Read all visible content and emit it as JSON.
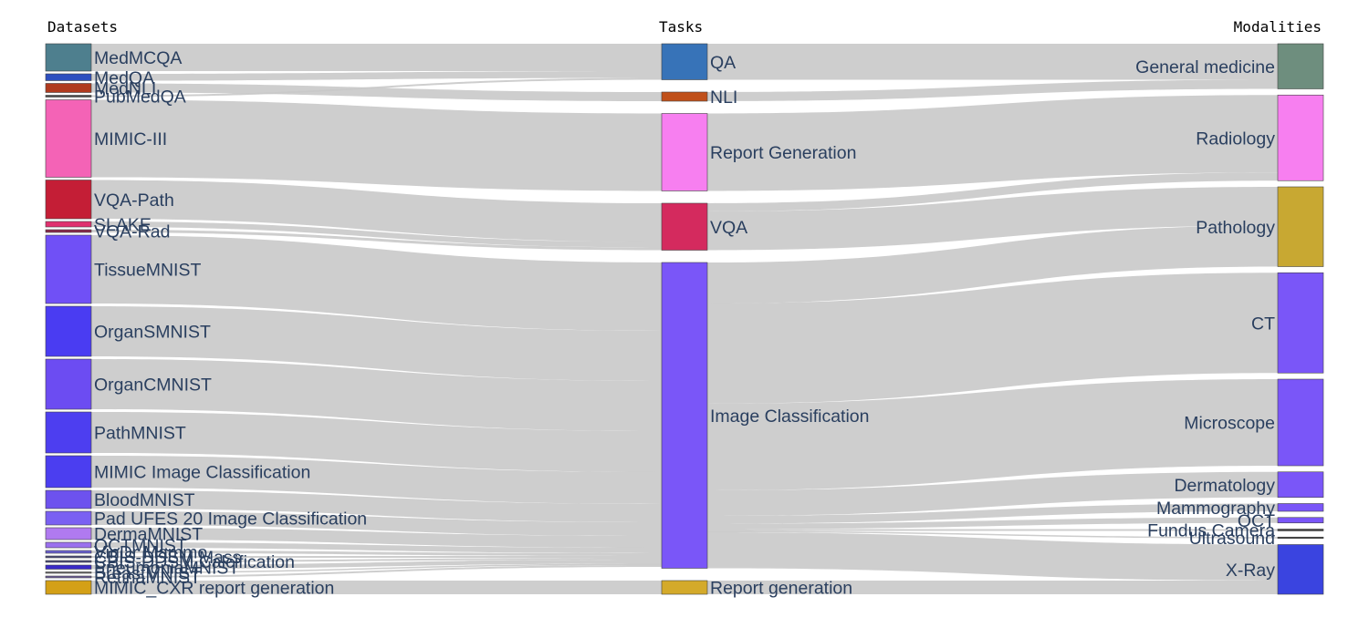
{
  "headers": {
    "datasets": "Datasets",
    "tasks": "Tasks",
    "modalities": "Modalities"
  },
  "chart_data": {
    "type": "sankey",
    "nodes": [
      {
        "id": "MedMCQA",
        "label": "MedMCQA",
        "column": 0,
        "color": "#4e7f8e"
      },
      {
        "id": "MedQA",
        "label": "MedQA",
        "column": 0,
        "color": "#2d4fbf"
      },
      {
        "id": "MedNLI",
        "label": "MedNLI",
        "column": 0,
        "color": "#b03a1e"
      },
      {
        "id": "PubMedQA",
        "label": "PubMedQA",
        "column": 0,
        "color": "#4a4a4a"
      },
      {
        "id": "MIMIC-III",
        "label": "MIMIC-III",
        "column": 0,
        "color": "#f463b6"
      },
      {
        "id": "VQA-Path",
        "label": "VQA-Path",
        "column": 0,
        "color": "#c41e36"
      },
      {
        "id": "SLAKE",
        "label": "SLAKE",
        "column": 0,
        "color": "#e0306e"
      },
      {
        "id": "VQA-Rad",
        "label": "VQA-Rad",
        "column": 0,
        "color": "#8a2a4a"
      },
      {
        "id": "TissueMNIST",
        "label": "TissueMNIST",
        "column": 0,
        "color": "#7050f6"
      },
      {
        "id": "OrganSMNIST",
        "label": "OrganSMNIST",
        "column": 0,
        "color": "#4a3cf2"
      },
      {
        "id": "OrganCMNIST",
        "label": "OrganCMNIST",
        "column": 0,
        "color": "#6c4cf2"
      },
      {
        "id": "PathMNIST",
        "label": "PathMNIST",
        "column": 0,
        "color": "#4d3ef0"
      },
      {
        "id": "MIMIC Image Classification",
        "label": "MIMIC Image Classification",
        "column": 0,
        "color": "#4b3ef0"
      },
      {
        "id": "BloodMNIST",
        "label": "BloodMNIST",
        "column": 0,
        "color": "#6d52ee"
      },
      {
        "id": "Pad UFES 20 Image Classification",
        "label": "Pad UFES 20 Image Classification",
        "column": 0,
        "color": "#7a60f2"
      },
      {
        "id": "DermaMNIST",
        "label": "DermaMNIST",
        "column": 0,
        "color": "#b07af0"
      },
      {
        "id": "OCTMNIST",
        "label": "OCTMNIST",
        "column": 0,
        "color": "#9a70ee"
      },
      {
        "id": "VinDr Mammo",
        "label": "VinDr Mammo",
        "column": 0,
        "color": "#6a60d0"
      },
      {
        "id": "CBIS-DDSM Mass",
        "label": "CBIS-DDSM Mass",
        "column": 0,
        "color": "#4a4a7a"
      },
      {
        "id": "CBIS-DDSM Calcification",
        "label": "CBIS-DDSM Calcification",
        "column": 0,
        "color": "#4a4a7a"
      },
      {
        "id": "PneumoniaMNIST",
        "label": "PneumoniaMNIST",
        "column": 0,
        "color": "#3a2ac8"
      },
      {
        "id": "BreastMNIST",
        "label": "BreastMNIST",
        "column": 0,
        "color": "#6a6a6a"
      },
      {
        "id": "RetinaMNIST",
        "label": "RetinaMNIST",
        "column": 0,
        "color": "#6a5a9a"
      },
      {
        "id": "MIMIC_CXR report generation",
        "label": "MIMIC_CXR report generation",
        "column": 0,
        "color": "#d4a017"
      },
      {
        "id": "QA",
        "label": "QA",
        "column": 1,
        "color": "#3773b8"
      },
      {
        "id": "NLI",
        "label": "NLI",
        "column": 1,
        "color": "#c0501a"
      },
      {
        "id": "Report Generation",
        "label": "Report Generation",
        "column": 1,
        "color": "#f77ff0"
      },
      {
        "id": "VQA",
        "label": "VQA",
        "column": 1,
        "color": "#d42a5e"
      },
      {
        "id": "Image Classification",
        "label": "Image Classification",
        "column": 1,
        "color": "#7a56f8"
      },
      {
        "id": "Report generation",
        "label": "Report generation",
        "column": 1,
        "color": "#d4aa2a"
      },
      {
        "id": "General medicine",
        "label": "General medicine",
        "column": 2,
        "color": "#6e8e7e"
      },
      {
        "id": "Radiology",
        "label": "Radiology",
        "column": 2,
        "color": "#f77ff0"
      },
      {
        "id": "Pathology",
        "label": "Pathology",
        "column": 2,
        "color": "#c8a832"
      },
      {
        "id": "CT",
        "label": "CT",
        "column": 2,
        "color": "#7a56f8"
      },
      {
        "id": "Microscope",
        "label": "Microscope",
        "column": 2,
        "color": "#7a56f8"
      },
      {
        "id": "Dermatology",
        "label": "Dermatology",
        "column": 2,
        "color": "#7a56f8"
      },
      {
        "id": "Mammography",
        "label": "Mammography",
        "column": 2,
        "color": "#7a56f8"
      },
      {
        "id": "OCT",
        "label": "OCT",
        "column": 2,
        "color": "#7a56f8"
      },
      {
        "id": "Fundus Camera",
        "label": "Fundus Camera",
        "column": 2,
        "color": "#444444"
      },
      {
        "id": "Ultrasound",
        "label": "Ultrasound",
        "column": 2,
        "color": "#444444"
      },
      {
        "id": "X-Ray",
        "label": "X-Ray",
        "column": 2,
        "color": "#3a44e0"
      }
    ],
    "links": [
      {
        "source": "MedMCQA",
        "target": "QA",
        "value": 6
      },
      {
        "source": "MedQA",
        "target": "QA",
        "value": 1.5
      },
      {
        "source": "PubMedQA",
        "target": "QA",
        "value": 0.4
      },
      {
        "source": "MedNLI",
        "target": "NLI",
        "value": 2
      },
      {
        "source": "MIMIC-III",
        "target": "Report Generation",
        "value": 17
      },
      {
        "source": "VQA-Path",
        "target": "VQA",
        "value": 8.5
      },
      {
        "source": "SLAKE",
        "target": "VQA",
        "value": 1.2
      },
      {
        "source": "VQA-Rad",
        "target": "VQA",
        "value": 0.6
      },
      {
        "source": "TissueMNIST",
        "target": "Image Classification",
        "value": 15
      },
      {
        "source": "OrganSMNIST",
        "target": "Image Classification",
        "value": 11
      },
      {
        "source": "OrganCMNIST",
        "target": "Image Classification",
        "value": 11
      },
      {
        "source": "PathMNIST",
        "target": "Image Classification",
        "value": 9
      },
      {
        "source": "MIMIC Image Classification",
        "target": "Image Classification",
        "value": 7
      },
      {
        "source": "BloodMNIST",
        "target": "Image Classification",
        "value": 4
      },
      {
        "source": "Pad UFES 20 Image Classification",
        "target": "Image Classification",
        "value": 3
      },
      {
        "source": "DermaMNIST",
        "target": "Image Classification",
        "value": 2.6
      },
      {
        "source": "OCTMNIST",
        "target": "Image Classification",
        "value": 1.2
      },
      {
        "source": "VinDr Mammo",
        "target": "Image Classification",
        "value": 0.6
      },
      {
        "source": "CBIS-DDSM Mass",
        "target": "Image Classification",
        "value": 0.4
      },
      {
        "source": "CBIS-DDSM Calcification",
        "target": "Image Classification",
        "value": 0.4
      },
      {
        "source": "PneumoniaMNIST",
        "target": "Image Classification",
        "value": 0.9
      },
      {
        "source": "BreastMNIST",
        "target": "Image Classification",
        "value": 0.3
      },
      {
        "source": "RetinaMNIST",
        "target": "Image Classification",
        "value": 0.4
      },
      {
        "source": "MIMIC_CXR report generation",
        "target": "Report generation",
        "value": 3
      },
      {
        "source": "QA",
        "target": "General medicine",
        "value": 7.9
      },
      {
        "source": "NLI",
        "target": "General medicine",
        "value": 2
      },
      {
        "source": "Report Generation",
        "target": "Radiology",
        "value": 17
      },
      {
        "source": "VQA",
        "target": "Radiology",
        "value": 1.8
      },
      {
        "source": "VQA",
        "target": "Pathology",
        "value": 8.5
      },
      {
        "source": "Image Classification",
        "target": "Pathology",
        "value": 9
      },
      {
        "source": "Image Classification",
        "target": "CT",
        "value": 22
      },
      {
        "source": "Image Classification",
        "target": "Microscope",
        "value": 19
      },
      {
        "source": "Image Classification",
        "target": "Dermatology",
        "value": 5.6
      },
      {
        "source": "Image Classification",
        "target": "Mammography",
        "value": 1.7
      },
      {
        "source": "Image Classification",
        "target": "OCT",
        "value": 1.2
      },
      {
        "source": "Image Classification",
        "target": "Fundus Camera",
        "value": 0.4
      },
      {
        "source": "Image Classification",
        "target": "Ultrasound",
        "value": 0.3
      },
      {
        "source": "Image Classification",
        "target": "X-Ray",
        "value": 7.9
      },
      {
        "source": "Report generation",
        "target": "X-Ray",
        "value": 3
      }
    ]
  }
}
